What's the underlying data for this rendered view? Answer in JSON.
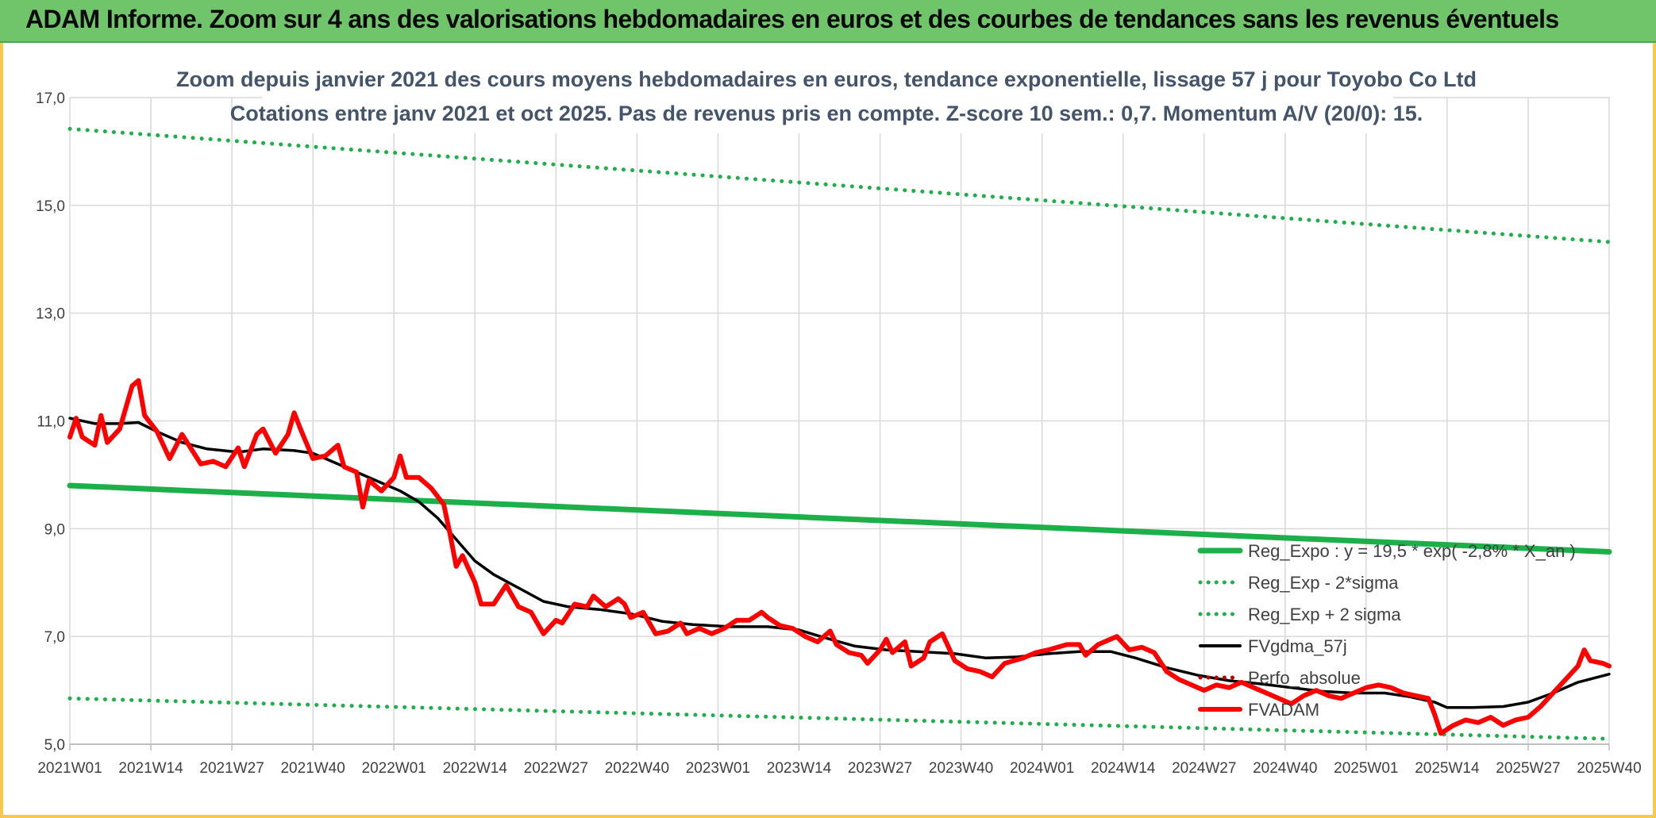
{
  "header": {
    "title": "ADAM Informe. Zoom sur 4 ans des valorisations hebdomadaires en euros et des courbes de tendances sans les revenus éventuels"
  },
  "chart_data": {
    "type": "line",
    "title": "Zoom depuis janvier 2021 des cours moyens hebdomadaires en euros, tendance exponentielle, lissage 57 j pour Toyobo Co Ltd",
    "subtitle": "Cotations entre janv 2021 et oct 2025. Pas de revenus pris en compte. Z-score 10 sem.: 0,7. Momentum A/V (20/0): 15.",
    "xlabel": "",
    "ylabel": "",
    "ylim": [
      5.0,
      17.0
    ],
    "yticks": [
      "5,0",
      "7,0",
      "9,0",
      "11,0",
      "13,0",
      "15,0",
      "17,0"
    ],
    "yticks_values": [
      5,
      7,
      9,
      11,
      13,
      15,
      17
    ],
    "week_count": 247,
    "x_ticks": [
      {
        "label": "2021W01",
        "index": 0
      },
      {
        "label": "2021W14",
        "index": 13
      },
      {
        "label": "2021W27",
        "index": 26
      },
      {
        "label": "2021W40",
        "index": 39
      },
      {
        "label": "2022W01",
        "index": 52
      },
      {
        "label": "2022W14",
        "index": 65
      },
      {
        "label": "2022W27",
        "index": 78
      },
      {
        "label": "2022W40",
        "index": 91
      },
      {
        "label": "2023W01",
        "index": 104
      },
      {
        "label": "2023W14",
        "index": 117
      },
      {
        "label": "2023W27",
        "index": 130
      },
      {
        "label": "2023W40",
        "index": 143
      },
      {
        "label": "2024W01",
        "index": 156
      },
      {
        "label": "2024W14",
        "index": 169
      },
      {
        "label": "2024W27",
        "index": 182
      },
      {
        "label": "2024W40",
        "index": 195
      },
      {
        "label": "2025W01",
        "index": 208
      },
      {
        "label": "2025W14",
        "index": 221
      },
      {
        "label": "2025W27",
        "index": 234
      },
      {
        "label": "2025W40",
        "index": 247
      }
    ],
    "series": [
      {
        "name": "Reg_Expo : y = 19,5 * exp( -2,8% * X_an )",
        "color": "#1db04a",
        "style": "solid",
        "points": [
          [
            0,
            9.8
          ],
          [
            247,
            8.57
          ]
        ]
      },
      {
        "name": "Reg_Exp - 2*sigma",
        "color": "#1db04a",
        "style": "dotted",
        "points": [
          [
            0,
            5.85
          ],
          [
            247,
            5.1
          ]
        ]
      },
      {
        "name": "Reg_Exp + 2 sigma",
        "color": "#1db04a",
        "style": "dotted",
        "points": [
          [
            0,
            16.42
          ],
          [
            247,
            14.32
          ]
        ]
      },
      {
        "name": "FVgdma_57j",
        "color": "#000000",
        "style": "solid",
        "points": [
          [
            0,
            11.05
          ],
          [
            4,
            10.95
          ],
          [
            8,
            10.95
          ],
          [
            11,
            10.97
          ],
          [
            14,
            10.8
          ],
          [
            18,
            10.6
          ],
          [
            22,
            10.48
          ],
          [
            27,
            10.42
          ],
          [
            31,
            10.48
          ],
          [
            36,
            10.45
          ],
          [
            39,
            10.4
          ],
          [
            42,
            10.25
          ],
          [
            46,
            10.05
          ],
          [
            50,
            9.85
          ],
          [
            53,
            9.7
          ],
          [
            56,
            9.5
          ],
          [
            59,
            9.2
          ],
          [
            62,
            8.8
          ],
          [
            65,
            8.4
          ],
          [
            68,
            8.15
          ],
          [
            72,
            7.9
          ],
          [
            76,
            7.65
          ],
          [
            80,
            7.55
          ],
          [
            85,
            7.5
          ],
          [
            90,
            7.42
          ],
          [
            95,
            7.28
          ],
          [
            100,
            7.22
          ],
          [
            106,
            7.18
          ],
          [
            112,
            7.18
          ],
          [
            117,
            7.12
          ],
          [
            121,
            6.98
          ],
          [
            126,
            6.82
          ],
          [
            131,
            6.75
          ],
          [
            136,
            6.72
          ],
          [
            142,
            6.68
          ],
          [
            147,
            6.6
          ],
          [
            152,
            6.62
          ],
          [
            157,
            6.68
          ],
          [
            162,
            6.72
          ],
          [
            167,
            6.72
          ],
          [
            171,
            6.6
          ],
          [
            176,
            6.42
          ],
          [
            181,
            6.28
          ],
          [
            186,
            6.18
          ],
          [
            191,
            6.12
          ],
          [
            196,
            6.05
          ],
          [
            201,
            5.98
          ],
          [
            206,
            5.95
          ],
          [
            211,
            5.95
          ],
          [
            215,
            5.88
          ],
          [
            219,
            5.78
          ],
          [
            221,
            5.68
          ],
          [
            225,
            5.68
          ],
          [
            230,
            5.7
          ],
          [
            234,
            5.78
          ],
          [
            238,
            5.95
          ],
          [
            242,
            6.15
          ],
          [
            247,
            6.3
          ]
        ]
      },
      {
        "name": "Perfo_absolue",
        "color": "#c00000",
        "style": "dotted",
        "points": []
      },
      {
        "name": "FVADAM",
        "color": "#ff0000",
        "style": "solid",
        "points": [
          [
            0,
            10.7
          ],
          [
            1,
            11.05
          ],
          [
            2,
            10.7
          ],
          [
            4,
            10.55
          ],
          [
            5,
            11.1
          ],
          [
            6,
            10.6
          ],
          [
            8,
            10.85
          ],
          [
            10,
            11.65
          ],
          [
            11,
            11.75
          ],
          [
            12,
            11.1
          ],
          [
            14,
            10.8
          ],
          [
            16,
            10.3
          ],
          [
            18,
            10.75
          ],
          [
            21,
            10.2
          ],
          [
            23,
            10.25
          ],
          [
            25,
            10.15
          ],
          [
            27,
            10.5
          ],
          [
            28,
            10.15
          ],
          [
            30,
            10.75
          ],
          [
            31,
            10.85
          ],
          [
            33,
            10.4
          ],
          [
            35,
            10.75
          ],
          [
            36,
            11.15
          ],
          [
            37,
            10.85
          ],
          [
            39,
            10.3
          ],
          [
            41,
            10.35
          ],
          [
            43,
            10.55
          ],
          [
            44,
            10.15
          ],
          [
            46,
            10.05
          ],
          [
            47,
            9.4
          ],
          [
            48,
            9.9
          ],
          [
            50,
            9.7
          ],
          [
            52,
            9.95
          ],
          [
            53,
            10.35
          ],
          [
            54,
            9.95
          ],
          [
            56,
            9.95
          ],
          [
            58,
            9.75
          ],
          [
            60,
            9.45
          ],
          [
            61,
            8.9
          ],
          [
            62,
            8.3
          ],
          [
            63,
            8.5
          ],
          [
            65,
            8.0
          ],
          [
            66,
            7.6
          ],
          [
            68,
            7.6
          ],
          [
            70,
            7.95
          ],
          [
            72,
            7.55
          ],
          [
            74,
            7.45
          ],
          [
            76,
            7.05
          ],
          [
            78,
            7.3
          ],
          [
            79,
            7.25
          ],
          [
            81,
            7.6
          ],
          [
            83,
            7.55
          ],
          [
            84,
            7.75
          ],
          [
            86,
            7.55
          ],
          [
            88,
            7.7
          ],
          [
            89,
            7.6
          ],
          [
            90,
            7.35
          ],
          [
            92,
            7.45
          ],
          [
            94,
            7.05
          ],
          [
            96,
            7.1
          ],
          [
            98,
            7.25
          ],
          [
            99,
            7.05
          ],
          [
            101,
            7.15
          ],
          [
            103,
            7.05
          ],
          [
            105,
            7.15
          ],
          [
            107,
            7.3
          ],
          [
            109,
            7.3
          ],
          [
            111,
            7.45
          ],
          [
            112,
            7.35
          ],
          [
            114,
            7.2
          ],
          [
            116,
            7.15
          ],
          [
            118,
            7.0
          ],
          [
            120,
            6.9
          ],
          [
            122,
            7.1
          ],
          [
            123,
            6.85
          ],
          [
            125,
            6.7
          ],
          [
            127,
            6.65
          ],
          [
            128,
            6.5
          ],
          [
            130,
            6.75
          ],
          [
            131,
            6.95
          ],
          [
            132,
            6.7
          ],
          [
            134,
            6.9
          ],
          [
            135,
            6.45
          ],
          [
            137,
            6.6
          ],
          [
            138,
            6.9
          ],
          [
            140,
            7.05
          ],
          [
            142,
            6.55
          ],
          [
            144,
            6.4
          ],
          [
            146,
            6.35
          ],
          [
            148,
            6.25
          ],
          [
            150,
            6.5
          ],
          [
            153,
            6.6
          ],
          [
            155,
            6.7
          ],
          [
            157,
            6.75
          ],
          [
            160,
            6.85
          ],
          [
            162,
            6.85
          ],
          [
            163,
            6.65
          ],
          [
            165,
            6.85
          ],
          [
            168,
            7.0
          ],
          [
            170,
            6.75
          ],
          [
            172,
            6.8
          ],
          [
            174,
            6.7
          ],
          [
            176,
            6.35
          ],
          [
            178,
            6.2
          ],
          [
            180,
            6.1
          ],
          [
            182,
            6.0
          ],
          [
            184,
            6.1
          ],
          [
            186,
            6.05
          ],
          [
            188,
            6.15
          ],
          [
            190,
            6.05
          ],
          [
            192,
            5.95
          ],
          [
            194,
            5.85
          ],
          [
            196,
            5.75
          ],
          [
            198,
            5.9
          ],
          [
            200,
            6.0
          ],
          [
            202,
            5.9
          ],
          [
            204,
            5.85
          ],
          [
            206,
            5.95
          ],
          [
            208,
            6.05
          ],
          [
            210,
            6.1
          ],
          [
            212,
            6.05
          ],
          [
            214,
            5.95
          ],
          [
            216,
            5.9
          ],
          [
            218,
            5.85
          ],
          [
            219,
            5.55
          ],
          [
            220,
            5.2
          ],
          [
            222,
            5.35
          ],
          [
            224,
            5.45
          ],
          [
            226,
            5.4
          ],
          [
            228,
            5.5
          ],
          [
            230,
            5.35
          ],
          [
            232,
            5.45
          ],
          [
            234,
            5.5
          ],
          [
            236,
            5.7
          ],
          [
            238,
            5.95
          ],
          [
            240,
            6.2
          ],
          [
            242,
            6.45
          ],
          [
            243,
            6.75
          ],
          [
            244,
            6.55
          ],
          [
            246,
            6.5
          ],
          [
            247,
            6.45
          ]
        ]
      }
    ],
    "legend": {
      "position": "inside-bottom-right",
      "entries": [
        "Reg_Expo : y = 19,5 * exp( -2,8% * X_an )",
        "Reg_Exp - 2*sigma",
        "Reg_Exp + 2 sigma",
        "FVgdma_57j",
        "Perfo_absolue",
        "FVADAM"
      ]
    },
    "grid": true
  },
  "colors": {
    "banner": "#70c46a",
    "frame": "#f6c84b",
    "gridline": "#d9d9d9",
    "trend_green": "#1db04a",
    "price_red": "#ff0000",
    "smooth_black": "#000000",
    "perf_darkred": "#c00000"
  }
}
